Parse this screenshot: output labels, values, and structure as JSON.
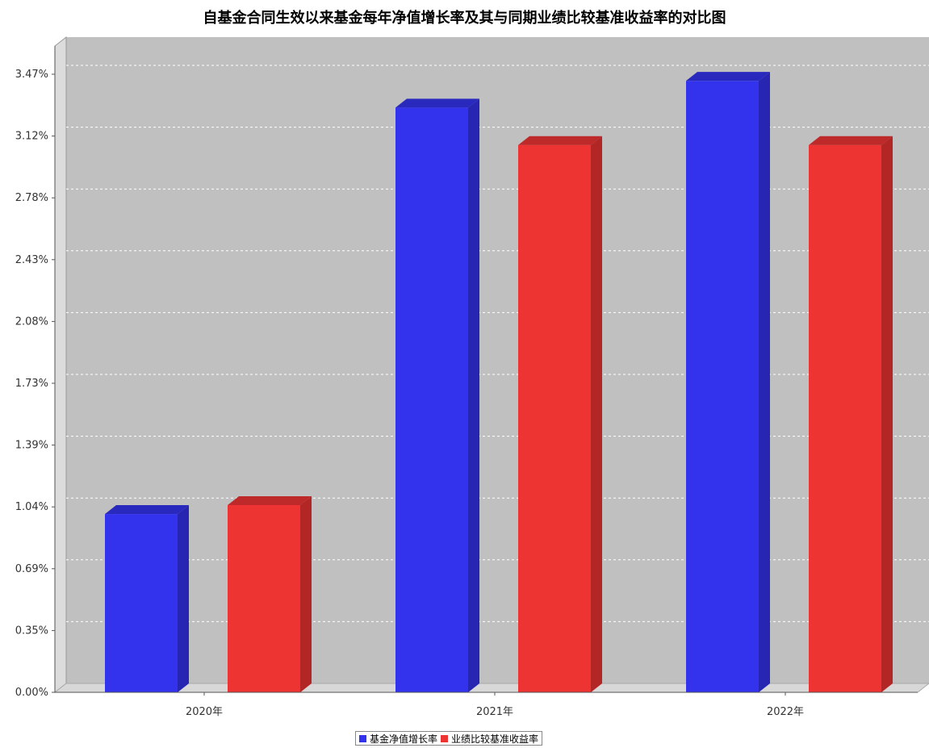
{
  "chart_data": {
    "type": "bar",
    "title": "自基金合同生效以来基金每年净值增长率及其与同期业绩比较基准收益率的对比图",
    "categories": [
      "2020年",
      "2021年",
      "2022年"
    ],
    "series": [
      {
        "name": "基金净值增长率",
        "color": "#3333ee",
        "values": [
          1.0,
          3.28,
          3.43
        ]
      },
      {
        "name": "业绩比较基准收益率",
        "color": "#ee3333",
        "values": [
          1.05,
          3.07,
          3.07
        ]
      }
    ],
    "yticks": [
      "0.00%",
      "0.35%",
      "0.69%",
      "1.04%",
      "1.39%",
      "1.73%",
      "2.08%",
      "2.43%",
      "2.78%",
      "3.12%",
      "3.47%"
    ],
    "ytick_values": [
      0,
      0.3467,
      0.6934,
      1.0401,
      1.3868,
      1.7335,
      2.0802,
      2.4269,
      2.7736,
      3.1203,
      3.467
    ],
    "ylim": [
      0,
      3.467
    ],
    "xlabel": "",
    "ylabel": "",
    "grid": true,
    "legend_position": "bottom"
  }
}
